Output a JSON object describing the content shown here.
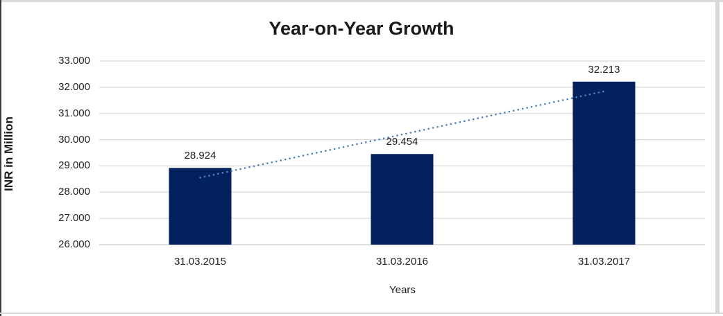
{
  "chart_data": {
    "type": "bar",
    "title": "Year-on-Year Growth",
    "xlabel": "Years",
    "ylabel": "INR in Million",
    "categories": [
      "31.03.2015",
      "31.03.2016",
      "31.03.2017"
    ],
    "values": [
      28.924,
      29.454,
      32.213
    ],
    "data_labels": [
      "28.924",
      "29.454",
      "32.213"
    ],
    "ylim": [
      26.0,
      33.0
    ],
    "ytick_step": 1.0,
    "ytick_labels": [
      "26.000",
      "27.000",
      "28.000",
      "29.000",
      "30.000",
      "31.000",
      "32.000",
      "33.000"
    ],
    "grid": true,
    "legend": "none",
    "trendline": {
      "type": "linear",
      "style": "dotted",
      "value_start": 28.553,
      "value_end": 31.842
    },
    "colors": {
      "bar": "#03215D",
      "trendline": "#4F81BD",
      "gridline": "#D9D9D9",
      "axis_line": "#D9D9D9",
      "text": "#1f1f1f",
      "title_text": "#1A1A1A",
      "background": "#FFFFFF"
    }
  }
}
